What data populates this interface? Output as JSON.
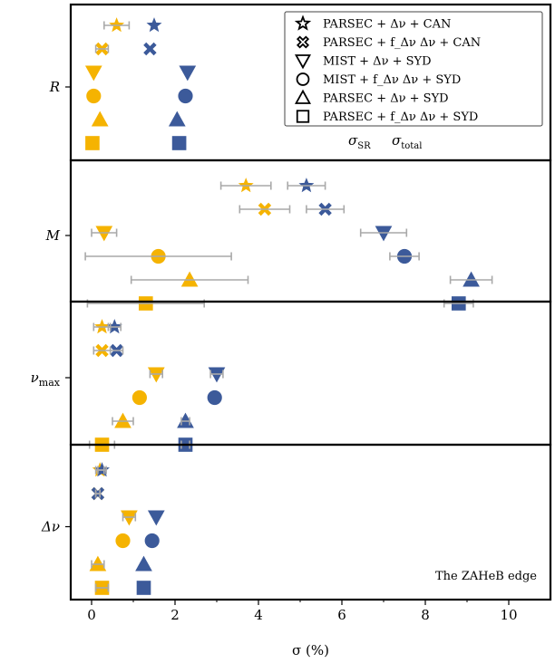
{
  "chart_data": {
    "type": "scatter",
    "subtype": "dot-plot with error bars, four stacked panels",
    "xlabel": "σ (%)",
    "xlim": [
      -0.5,
      11
    ],
    "xticks": [
      0,
      2,
      4,
      6,
      8,
      10
    ],
    "grid": false,
    "annotation": "The ZAHeB edge",
    "color_key": [
      {
        "label": "σ_SR",
        "color": "#f5b301"
      },
      {
        "label": "σ_total",
        "color": "#3c5a9a"
      }
    ],
    "error_bar_color": "#a9a9a9",
    "legend_position": "top-right",
    "legend": [
      {
        "marker": "star",
        "label": "PARSEC + Δν + CAN"
      },
      {
        "marker": "x",
        "label": "PARSEC + f_Δν Δν + CAN"
      },
      {
        "marker": "triangle-down",
        "label": "MIST + Δν + SYD"
      },
      {
        "marker": "circle",
        "label": "MIST + f_Δν Δν + SYD"
      },
      {
        "marker": "triangle-up",
        "label": "PARSEC + Δν + SYD"
      },
      {
        "marker": "square",
        "label": "PARSEC + f_Δν Δν + SYD"
      }
    ],
    "panels": [
      {
        "label": "R",
        "points": [
          {
            "marker": "star",
            "sr": 0.6,
            "sr_err": 0.3,
            "total": 1.5,
            "total_err": 0.0
          },
          {
            "marker": "x",
            "sr": 0.25,
            "sr_err": 0.15,
            "total": 1.4,
            "total_err": 0.0
          },
          {
            "marker": "triangle-down",
            "sr": 0.05,
            "sr_err": 0.0,
            "total": 2.3,
            "total_err": 0.0
          },
          {
            "marker": "circle",
            "sr": 0.05,
            "sr_err": 0.0,
            "total": 2.25,
            "total_err": 0.0
          },
          {
            "marker": "triangle-up",
            "sr": 0.2,
            "sr_err": 0.0,
            "total": 2.05,
            "total_err": 0.0
          },
          {
            "marker": "square",
            "sr": 0.02,
            "sr_err": 0.0,
            "total": 2.1,
            "total_err": 0.0
          }
        ]
      },
      {
        "label": "M",
        "points": [
          {
            "marker": "star",
            "sr": 3.7,
            "sr_err": 0.6,
            "total": 5.15,
            "total_err": 0.45
          },
          {
            "marker": "x",
            "sr": 4.15,
            "sr_err": 0.6,
            "total": 5.6,
            "total_err": 0.45
          },
          {
            "marker": "triangle-down",
            "sr": 0.3,
            "sr_err": 0.3,
            "total": 7.0,
            "total_err": 0.55
          },
          {
            "marker": "circle",
            "sr": 1.6,
            "sr_err": 1.75,
            "total": 7.5,
            "total_err": 0.35
          },
          {
            "marker": "triangle-up",
            "sr": 2.35,
            "sr_err": 1.4,
            "total": 9.1,
            "total_err": 0.5
          },
          {
            "marker": "square",
            "sr": 1.3,
            "sr_err": 1.4,
            "total": 8.8,
            "total_err": 0.35
          }
        ]
      },
      {
        "label": "ν_max",
        "points": [
          {
            "marker": "star",
            "sr": 0.25,
            "sr_err": 0.2,
            "total": 0.55,
            "total_err": 0.15
          },
          {
            "marker": "x",
            "sr": 0.25,
            "sr_err": 0.2,
            "total": 0.6,
            "total_err": 0.15
          },
          {
            "marker": "triangle-down",
            "sr": 1.55,
            "sr_err": 0.15,
            "total": 3.0,
            "total_err": 0.15
          },
          {
            "marker": "circle",
            "sr": 1.15,
            "sr_err": 0.0,
            "total": 2.95,
            "total_err": 0.0
          },
          {
            "marker": "triangle-up",
            "sr": 0.75,
            "sr_err": 0.25,
            "total": 2.25,
            "total_err": 0.1
          },
          {
            "marker": "square",
            "sr": 0.25,
            "sr_err": 0.3,
            "total": 2.25,
            "total_err": 0.1
          }
        ]
      },
      {
        "label": "Δν",
        "points": [
          {
            "marker": "star",
            "sr": 0.2,
            "sr_err": 0.1,
            "total": 0.25,
            "total_err": 0.1
          },
          {
            "marker": "x",
            "sr": 0.15,
            "sr_err": 0.05,
            "total": 0.15,
            "total_err": 0.05
          },
          {
            "marker": "triangle-down",
            "sr": 0.9,
            "sr_err": 0.15,
            "total": 1.55,
            "total_err": 0.0
          },
          {
            "marker": "circle",
            "sr": 0.75,
            "sr_err": 0.0,
            "total": 1.45,
            "total_err": 0.0
          },
          {
            "marker": "triangle-up",
            "sr": 0.15,
            "sr_err": 0.15,
            "total": 1.25,
            "total_err": 0.0
          },
          {
            "marker": "square",
            "sr": 0.25,
            "sr_err": 0.15,
            "total": 1.25,
            "total_err": 0.0
          }
        ]
      }
    ]
  }
}
